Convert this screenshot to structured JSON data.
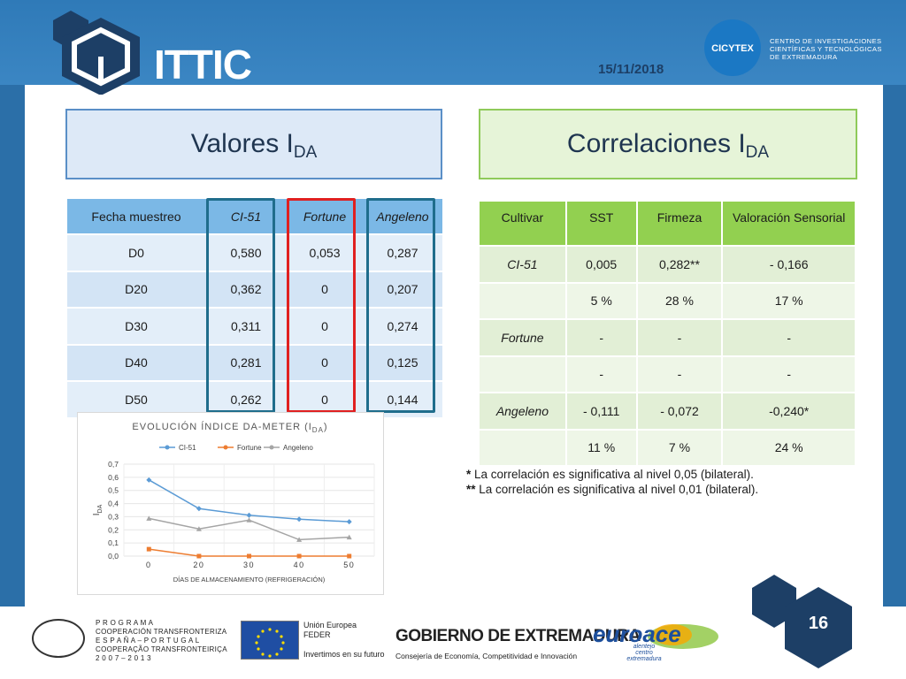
{
  "header": {
    "logo_text": "ITTIC",
    "date": "15/11/2018",
    "institution_logo": "CICYTEX",
    "institution_lines": [
      "CENTRO DE INVESTIGACIONES",
      "CIENTÍFICAS Y TECNOLÓGICAS",
      "DE EXTREMADURA"
    ]
  },
  "left_title": {
    "main": "Valores I",
    "sub": "DA"
  },
  "right_title": {
    "main": "Correlaciones I",
    "sub": "DA"
  },
  "table_ida": {
    "headers": [
      "Fecha muestreo",
      "CI-51",
      "Fortune",
      "Angeleno"
    ],
    "rows": [
      [
        "D0",
        "0,580",
        "0,053",
        "0,287"
      ],
      [
        "D20",
        "0,362",
        "0",
        "0,207"
      ],
      [
        "D30",
        "0,311",
        "0",
        "0,274"
      ],
      [
        "D40",
        "0,281",
        "0",
        "0,125"
      ],
      [
        "D50",
        "0,262",
        "0",
        "0,144"
      ]
    ]
  },
  "table_corr": {
    "headers": [
      "Cultivar",
      "SST",
      "Firmeza",
      "Valoración Sensorial"
    ],
    "rows": [
      [
        "CI-51",
        "0,005",
        "0,282**",
        "- 0,166"
      ],
      [
        "",
        "5 %",
        "28 %",
        "17 %"
      ],
      [
        "Fortune",
        "-",
        "-",
        "-"
      ],
      [
        "",
        "-",
        "-",
        "-"
      ],
      [
        "Angeleno",
        "- 0,111",
        "- 0,072",
        "-0,240*"
      ],
      [
        "",
        "11 %",
        "7 %",
        "24 %"
      ]
    ]
  },
  "notes": [
    {
      "mark": "*",
      "text": " La correlación es significativa al nivel 0,05 (bilateral)."
    },
    {
      "mark": "**",
      "text": " La correlación es significativa al nivel 0,01 (bilateral)."
    }
  ],
  "chart_data": {
    "type": "line",
    "title": "EVOLUCIÓN ÍNDICE DA-METER (I",
    "title_sub": "DA",
    "title_end": ")",
    "xlabel": "DÍAS DE ALMACENAMIENTO (REFRIGERACIÓN)",
    "ylabel": "I",
    "ylabel_sub": "DA",
    "x": [
      0,
      20,
      30,
      40,
      50
    ],
    "x_tick_labels": [
      "0",
      "20",
      "30",
      "40",
      "50"
    ],
    "ylim": [
      0,
      0.7
    ],
    "y_tick_labels": [
      "0,0",
      "0,1",
      "0,2",
      "0,3",
      "0,4",
      "0,5",
      "0,6",
      "0,7"
    ],
    "legend_position": "top",
    "grid": true,
    "series": [
      {
        "name": "CI-51",
        "values": [
          0.58,
          0.362,
          0.311,
          0.281,
          0.262
        ],
        "color": "#5b9bd5"
      },
      {
        "name": "Fortune",
        "values": [
          0.053,
          0,
          0,
          0,
          0
        ],
        "color": "#ed7d31"
      },
      {
        "name": "Angeleno",
        "values": [
          0.287,
          0.207,
          0.274,
          0.125,
          0.144
        ],
        "color": "#a5a5a5"
      }
    ]
  },
  "footer": {
    "program_lines": [
      "P R O G R A M A",
      "COOPERACIÓN TRANSFRONTERIZA",
      "E S P A Ñ A – P O R T U G A L",
      "COOPERAÇÃO TRANSFRONTEIRIÇA",
      "2 0 0 7  –  2 0 1 3"
    ],
    "eu_lines": [
      "Unión Europea",
      "FEDER",
      "",
      "Invertimos en su futuro"
    ],
    "gov_title": "GOBIERNO DE EXTREMADURA",
    "gov_sub": "Consejería de Economía, Competitividad e Innovación",
    "euroace_logo": "euroace",
    "euroace_lines": [
      "alentejo",
      "centro",
      "extremadura"
    ],
    "page_number": "16"
  },
  "colors": {
    "blue_band": "#2f7ab8",
    "table_blue_header": "#7bb8e6",
    "table_green_header": "#92d050",
    "outline_blue": "#1f6d8c",
    "outline_red": "#e02020"
  }
}
